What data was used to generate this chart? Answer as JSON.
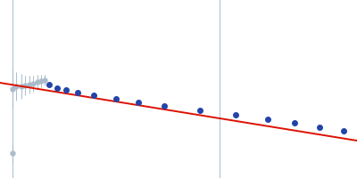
{
  "bg_color": "#ffffff",
  "fig_width": 4.0,
  "fig_height": 2.0,
  "dpi": 100,
  "xlim": [
    0.0,
    400.0
  ],
  "ylim": [
    0.0,
    200.0
  ],
  "guinier_line": {
    "x0": 0,
    "y0": 93,
    "x1": 400,
    "y1": 158
  },
  "vline_x": 246,
  "vline_color": "#aaccdd",
  "vline_lw": 0.9,
  "yaxis_line_x": 14,
  "yaxis_line_color": "#aaccdd",
  "yaxis_line_lw": 0.9,
  "excluded_points": {
    "x": [
      14,
      18,
      24,
      28,
      33,
      37,
      42,
      46,
      50,
      14
    ],
    "y": [
      100,
      97,
      97,
      96,
      95,
      94,
      92,
      91,
      90,
      172
    ],
    "yerr": [
      22,
      16,
      14,
      11,
      10,
      9,
      8,
      7,
      6,
      10
    ]
  },
  "included_points": {
    "x": [
      55,
      64,
      74,
      87,
      105,
      130,
      155,
      184,
      224,
      264,
      300,
      330,
      358,
      385
    ],
    "y": [
      95,
      99,
      101,
      104,
      107,
      111,
      115,
      119,
      124,
      129,
      134,
      138,
      143,
      147
    ]
  },
  "line_color": "#dd1100",
  "line_lw": 1.4,
  "dot_color_excluded": "#aabbcc",
  "dot_color_included": "#2244aa",
  "dot_size_excluded": 3.5,
  "dot_size_included": 4.0,
  "err_lw": 0.7
}
